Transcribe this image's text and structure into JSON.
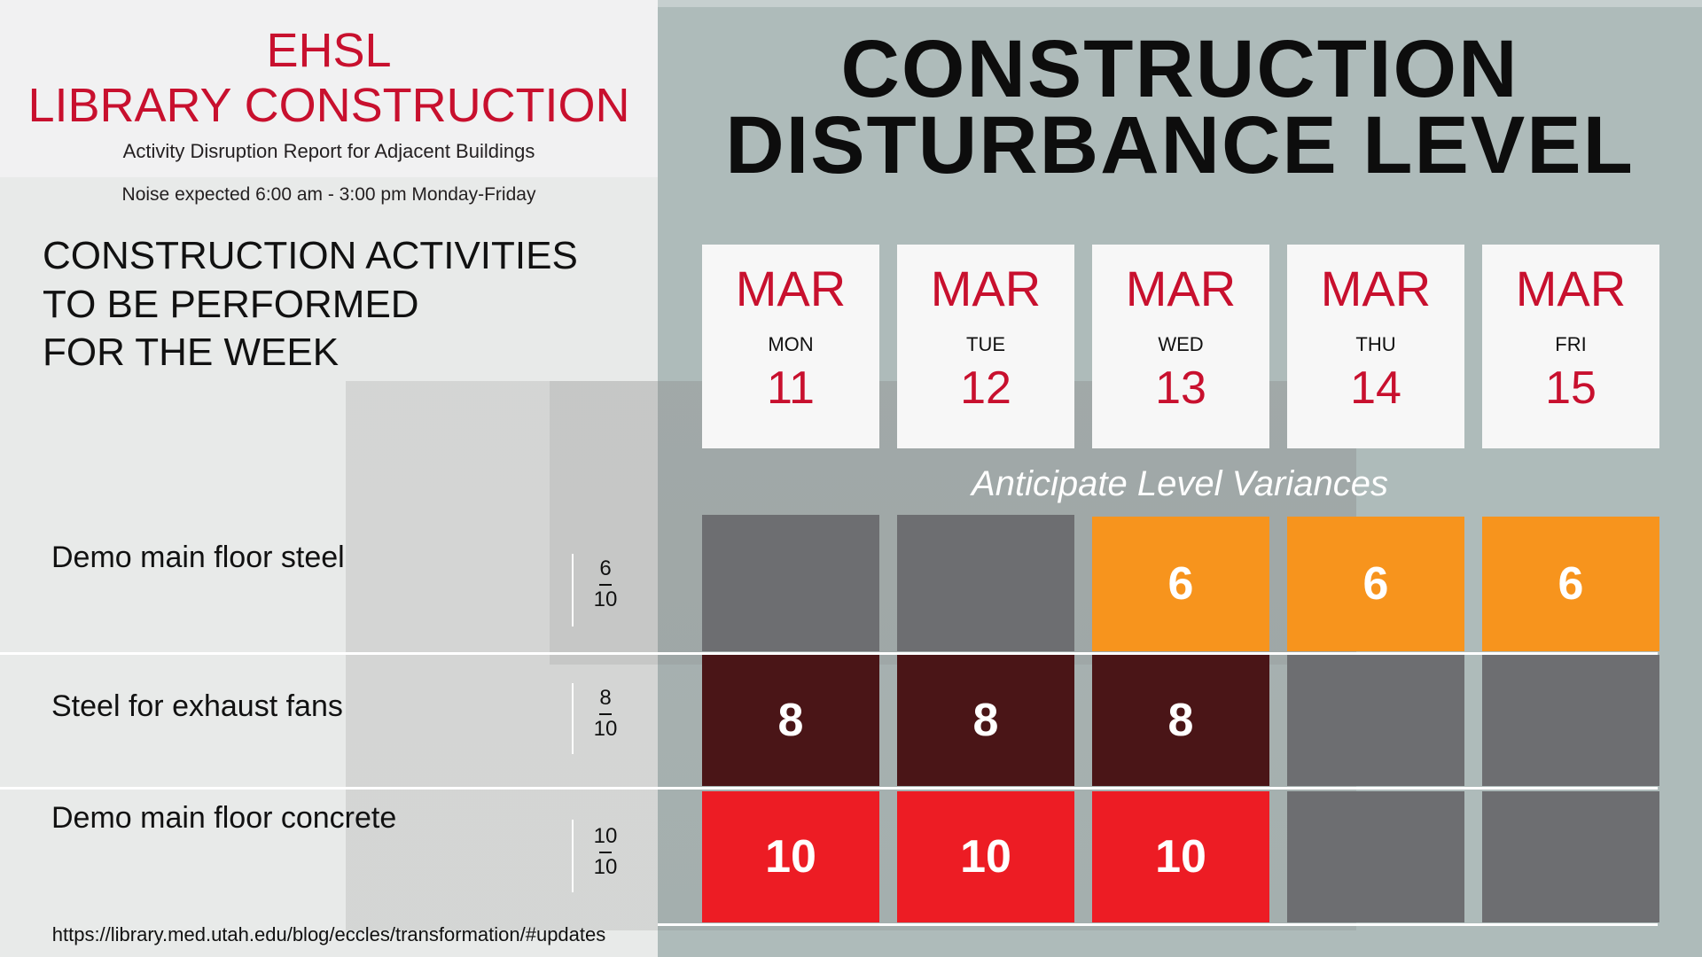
{
  "left_panel": {
    "title_line1": "EHSL",
    "title_line2": "LIBRARY CONSTRUCTION",
    "subtitle": "Activity Disruption Report for Adjacent Buildings",
    "noise_note": "Noise expected 6:00 am - 3:00 pm Monday-Friday",
    "activities_heading": [
      "CONSTRUCTION ACTIVITIES",
      "TO BE PERFORMED",
      "FOR THE WEEK"
    ],
    "url": "https://library.med.utah.edu/blog/eccles/transformation/#updates"
  },
  "main_title": {
    "line1": "CONSTRUCTION",
    "line2": "DISTURBANCE LEVEL"
  },
  "days": [
    {
      "month": "MAR",
      "dow": "MON",
      "date": "11"
    },
    {
      "month": "MAR",
      "dow": "TUE",
      "date": "12"
    },
    {
      "month": "MAR",
      "dow": "WED",
      "date": "13"
    },
    {
      "month": "MAR",
      "dow": "THU",
      "date": "14"
    },
    {
      "month": "MAR",
      "dow": "FRI",
      "date": "15"
    }
  ],
  "variance_label": "Anticipate Level Variances",
  "activities": [
    {
      "name": "Demo main floor steel",
      "level": "6",
      "max": "10",
      "cells": [
        "",
        "",
        "6",
        "6",
        "6"
      ]
    },
    {
      "name": "Steel for exhaust fans",
      "level": "8",
      "max": "10",
      "cells": [
        "8",
        "8",
        "8",
        "",
        ""
      ]
    },
    {
      "name": "Demo main floor concrete",
      "level": "10",
      "max": "10",
      "cells": [
        "10",
        "10",
        "10",
        "",
        ""
      ]
    }
  ],
  "colors": {
    "inactive": "#6d6e71",
    "level_6": "#f7941d",
    "level_8": "#4a1517",
    "level_10": "#ed1c24",
    "accent_red": "#c8102e"
  }
}
